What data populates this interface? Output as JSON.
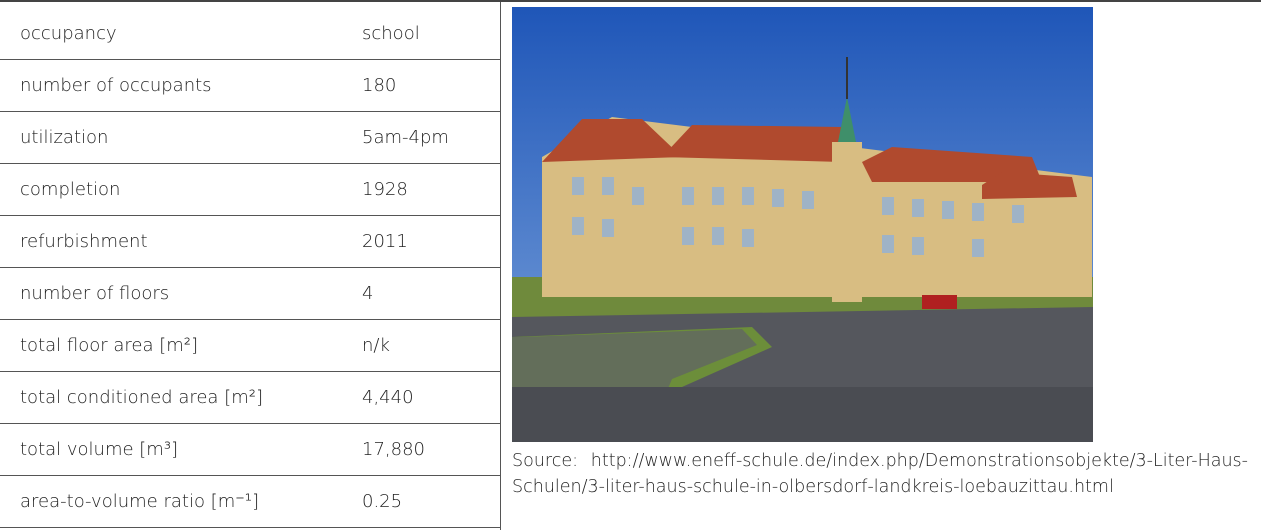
{
  "table": {
    "rows": [
      [
        "occupancy",
        "school"
      ],
      [
        "number of occupants",
        "180"
      ],
      [
        "utilization",
        "5am-4pm"
      ],
      [
        "completion",
        "1928"
      ],
      [
        "refurbishment",
        "2011"
      ],
      [
        "number of floors",
        "4"
      ],
      [
        "total floor area [m²]",
        "n/k"
      ],
      [
        "total conditioned area [m²]",
        "4,440"
      ],
      [
        "total volume [m³]",
        "17,880"
      ],
      [
        "area-to-volume ratio [m⁻¹]",
        "0.25"
      ]
    ]
  },
  "image": {
    "caption": "Source: http://www.eneff-schule.de/index.php/Demonstrationsobjekte/3-Liter-Haus-Schulen/3-liter-haus-schule-in-olbersdorf-landkreis-loebauzittau.html"
  }
}
